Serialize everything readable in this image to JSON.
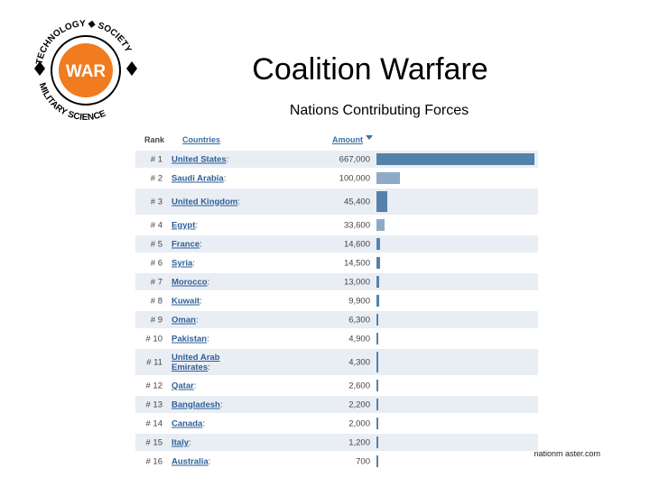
{
  "logo": {
    "center_text": "WAR",
    "ring_text": "TECHNOLOGY • SOCIETY • MILITARY SCIENCE",
    "colors": {
      "center": "#f07c1f",
      "ring": "#000000"
    }
  },
  "title": "Coalition Warfare",
  "subtitle": "Nations Contributing Forces",
  "table": {
    "headers": {
      "rank": "Rank",
      "country": "Countries",
      "amount": "Amount"
    },
    "sort_indicator": "down-arrow-icon",
    "bar_max": 667000,
    "rows": [
      {
        "rank": "# 1",
        "country": "United States",
        "amount": "667,000",
        "value": 667000
      },
      {
        "rank": "# 2",
        "country": "Saudi Arabia",
        "amount": "100,000",
        "value": 100000
      },
      {
        "rank": "# 3",
        "country": "United Kingdom",
        "amount": "45,400",
        "value": 45400
      },
      {
        "rank": "# 4",
        "country": "Egypt",
        "amount": "33,600",
        "value": 33600
      },
      {
        "rank": "# 5",
        "country": "France",
        "amount": "14,600",
        "value": 14600
      },
      {
        "rank": "# 6",
        "country": "Syria",
        "amount": "14,500",
        "value": 14500
      },
      {
        "rank": "# 7",
        "country": "Morocco",
        "amount": "13,000",
        "value": 13000
      },
      {
        "rank": "# 8",
        "country": "Kuwait",
        "amount": "9,900",
        "value": 9900
      },
      {
        "rank": "# 9",
        "country": "Oman",
        "amount": "6,300",
        "value": 6300
      },
      {
        "rank": "# 10",
        "country": "Pakistan",
        "amount": "4,900",
        "value": 4900
      },
      {
        "rank": "# 11",
        "country": "United Arab Emirates",
        "amount": "4,300",
        "value": 4300
      },
      {
        "rank": "# 12",
        "country": "Qatar",
        "amount": "2,600",
        "value": 2600
      },
      {
        "rank": "# 13",
        "country": "Bangladesh",
        "amount": "2,200",
        "value": 2200
      },
      {
        "rank": "# 14",
        "country": "Canada",
        "amount": "2,000",
        "value": 2000
      },
      {
        "rank": "# 15",
        "country": "Italy",
        "amount": "1,200",
        "value": 1200
      },
      {
        "rank": "# 16",
        "country": "Australia",
        "amount": "700",
        "value": 700
      }
    ]
  },
  "source": "nationm aster.com"
}
